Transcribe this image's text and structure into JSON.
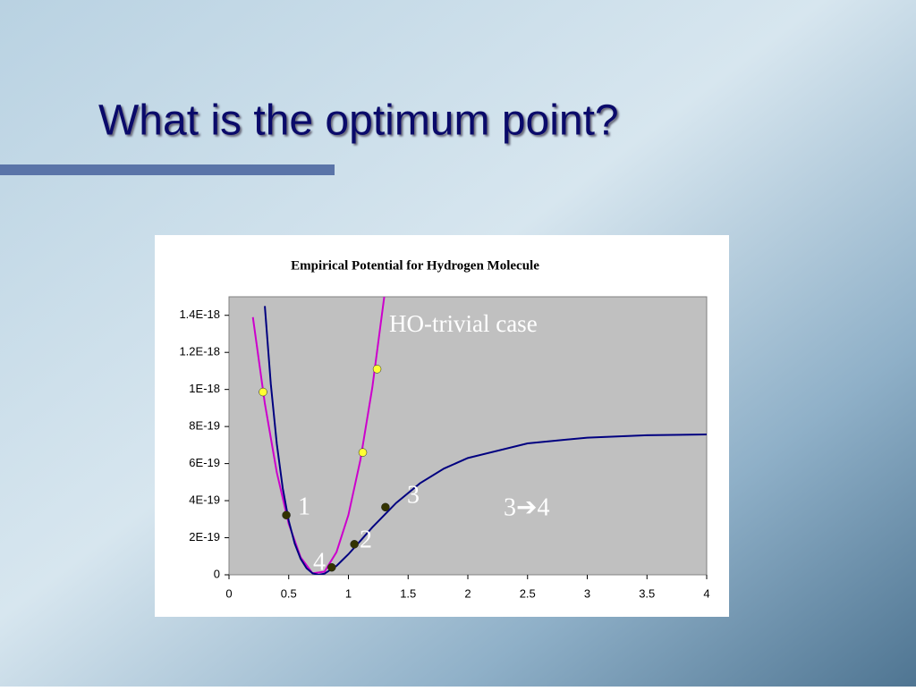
{
  "slide_title": "What is the optimum point?",
  "chart_data": {
    "type": "line",
    "title": "Empirical Potential for Hydrogen Molecule",
    "xlim": [
      0,
      4
    ],
    "xticks": [
      0,
      0.5,
      1,
      1.5,
      2,
      2.5,
      3,
      3.5,
      4
    ],
    "ylim": [
      0,
      1.5e-18
    ],
    "yticks": [
      0,
      {
        "value": 2e-19,
        "label": "2E-19"
      },
      {
        "value": 4e-19,
        "label": "4E-19"
      },
      {
        "value": 6e-19,
        "label": "6E-19"
      },
      {
        "value": 8e-19,
        "label": "8E-19"
      },
      {
        "value": 1e-18,
        "label": "1E-18"
      },
      {
        "value": 1.2e-18,
        "label": "1.2E-18"
      },
      {
        "value": 1.4e-18,
        "label": "1.4E-18"
      }
    ],
    "series": [
      {
        "color": "#cc00cc",
        "x": [
          0.2,
          0.3,
          0.4,
          0.5,
          0.6,
          0.7,
          0.8,
          0.9,
          1.0,
          1.1,
          1.2,
          1.3
        ],
        "values": [
          1.39e-18,
          9.25e-19,
          5.53e-19,
          2.75e-19,
          9.4e-20,
          7.6e-21,
          1.7e-20,
          1.22e-19,
          3.23e-19,
          6.19e-19,
          1.01e-18,
          1.5e-18
        ]
      },
      {
        "color": "#000080",
        "x": [
          0.3,
          0.35,
          0.4,
          0.45,
          0.5,
          0.55,
          0.6,
          0.65,
          0.7,
          0.75,
          0.8,
          0.9,
          1.0,
          1.1,
          1.2,
          1.4,
          1.6,
          1.8,
          2.0,
          2.5,
          3.0,
          3.5,
          4.0
        ],
        "values": [
          1.45e-18,
          1.03e-18,
          7.08e-19,
          4.67e-19,
          2.92e-19,
          1.69e-19,
          8.6e-20,
          3.5e-20,
          7.8e-21,
          0,
          6.4e-21,
          4.8e-20,
          1.11e-19,
          1.83e-19,
          2.56e-19,
          3.88e-19,
          4.94e-19,
          5.73e-19,
          6.3e-19,
          7.09e-19,
          7.4e-19,
          7.53e-19,
          7.57e-19
        ]
      }
    ],
    "points": [
      {
        "color": "#ffff33",
        "x": [
          0.285,
          1.12,
          1.24
        ],
        "values": [
          9.86e-19,
          6.6e-19,
          1.11e-18
        ]
      },
      {
        "color": "#333300",
        "x": [
          0.48,
          1.05,
          1.31,
          0.86
        ],
        "values": [
          3.22e-19,
          1.65e-19,
          3.65e-19,
          4e-20
        ]
      }
    ],
    "annotations": [
      "HO-trivial case",
      "1",
      "2",
      "3",
      "4",
      "3➔4"
    ]
  }
}
